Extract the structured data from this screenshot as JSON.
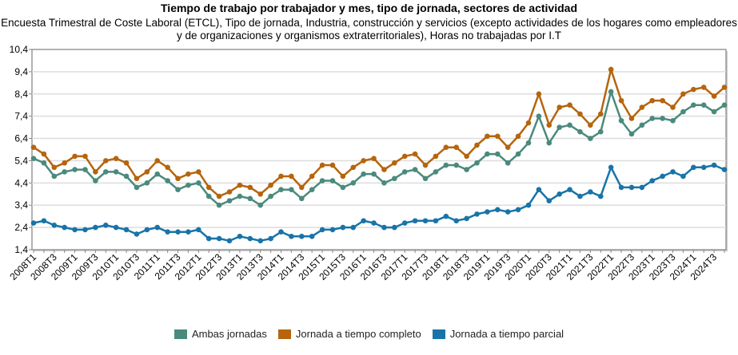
{
  "chart_data": {
    "type": "line",
    "title": "Tiempo de trabajo por trabajador y mes, tipo de jornada, sectores de actividad",
    "subtitle": "Encuesta Trimestral de Coste Laboral (ETCL), Tipo de jornada, Industria, construcción y servicios (excepto actividades de los hogares como empleadores y de organizaciones y organismos extraterritoriales), Horas no trabajadas por I.T",
    "ylim": [
      1.4,
      10.4
    ],
    "yticks": [
      "1,4",
      "2,4",
      "3,4",
      "4,4",
      "5,4",
      "6,4",
      "7,4",
      "8,4",
      "9,4",
      "10,4"
    ],
    "grid": true,
    "legend": "bottom",
    "years": [
      2008,
      2009,
      2010,
      2011,
      2012,
      2013,
      2014,
      2015,
      2016,
      2017,
      2018,
      2019,
      2020,
      2021,
      2022,
      2023,
      2024
    ],
    "series": [
      {
        "name": "Ambas jornadas",
        "color": "#4a8a7c",
        "values": [
          5.5,
          5.3,
          4.7,
          4.9,
          5.0,
          5.0,
          4.5,
          4.9,
          4.9,
          4.7,
          4.2,
          4.4,
          4.8,
          4.5,
          4.1,
          4.3,
          4.4,
          3.8,
          3.4,
          3.6,
          3.8,
          3.7,
          3.4,
          3.8,
          4.1,
          4.1,
          3.7,
          4.1,
          4.5,
          4.5,
          4.2,
          4.4,
          4.8,
          4.8,
          4.4,
          4.6,
          4.9,
          5.0,
          4.6,
          4.9,
          5.2,
          5.2,
          5.0,
          5.3,
          5.7,
          5.7,
          5.3,
          5.7,
          6.2,
          7.4,
          6.2,
          6.9,
          7.0,
          6.7,
          6.4,
          6.7,
          8.5,
          7.2,
          6.6,
          7.0,
          7.3,
          7.3,
          7.2,
          7.6,
          7.9,
          7.9,
          7.6,
          7.9
        ]
      },
      {
        "name": "Jornada a tiempo completo",
        "color": "#b5650e",
        "values": [
          6.0,
          5.7,
          5.1,
          5.3,
          5.6,
          5.6,
          4.9,
          5.4,
          5.5,
          5.3,
          4.6,
          4.9,
          5.4,
          5.1,
          4.6,
          4.8,
          4.9,
          4.2,
          3.8,
          4.0,
          4.3,
          4.2,
          3.9,
          4.3,
          4.7,
          4.7,
          4.2,
          4.7,
          5.2,
          5.2,
          4.7,
          5.1,
          5.4,
          5.5,
          5.0,
          5.3,
          5.6,
          5.7,
          5.2,
          5.6,
          6.0,
          6.0,
          5.6,
          6.1,
          6.5,
          6.5,
          6.0,
          6.5,
          7.1,
          8.4,
          7.0,
          7.8,
          7.9,
          7.5,
          7.0,
          7.5,
          9.5,
          8.1,
          7.3,
          7.8,
          8.1,
          8.1,
          7.8,
          8.4,
          8.6,
          8.7,
          8.3,
          8.7
        ]
      },
      {
        "name": "Jornada a tiempo parcial",
        "color": "#1874a8",
        "values": [
          2.6,
          2.7,
          2.5,
          2.4,
          2.3,
          2.3,
          2.4,
          2.5,
          2.4,
          2.3,
          2.1,
          2.3,
          2.4,
          2.2,
          2.2,
          2.2,
          2.3,
          1.9,
          1.9,
          1.8,
          2.0,
          1.9,
          1.8,
          1.9,
          2.2,
          2.0,
          2.0,
          2.0,
          2.3,
          2.3,
          2.4,
          2.4,
          2.7,
          2.6,
          2.4,
          2.4,
          2.6,
          2.7,
          2.7,
          2.7,
          2.9,
          2.7,
          2.8,
          3.0,
          3.1,
          3.2,
          3.1,
          3.2,
          3.4,
          4.1,
          3.6,
          3.9,
          4.1,
          3.8,
          4.0,
          3.8,
          5.1,
          4.2,
          4.2,
          4.2,
          4.5,
          4.7,
          4.9,
          4.7,
          5.1,
          5.1,
          5.2,
          5.0
        ]
      }
    ]
  }
}
